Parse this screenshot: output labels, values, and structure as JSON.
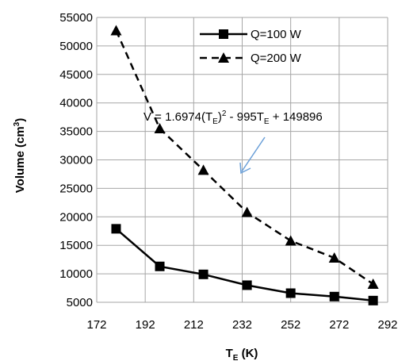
{
  "chart_data": {
    "type": "line",
    "xlabel": "T",
    "xlabel_sub": "E",
    "xlabel_unit": " (K)",
    "ylabel": "Volume (cm",
    "ylabel_sup": "3",
    "ylabel_close": ")",
    "xlim": [
      172,
      292
    ],
    "ylim": [
      5000,
      55000
    ],
    "x_ticks": [
      172,
      192,
      212,
      232,
      252,
      272,
      292
    ],
    "y_ticks": [
      5000,
      10000,
      15000,
      20000,
      25000,
      30000,
      35000,
      40000,
      45000,
      50000,
      55000
    ],
    "grid": true,
    "legend_position": "top-right",
    "series": [
      {
        "name": "Q=100 W",
        "marker": "square",
        "dash": "solid",
        "color": "#000000",
        "points": [
          [
            180,
            17900
          ],
          [
            198,
            11300
          ],
          [
            216,
            9900
          ],
          [
            234,
            8000
          ],
          [
            252,
            6600
          ],
          [
            270,
            6000
          ],
          [
            286,
            5300
          ]
        ]
      },
      {
        "name": "Q=200 W",
        "marker": "triangle",
        "dash": "dashed",
        "color": "#000000",
        "points": [
          [
            180,
            52700
          ],
          [
            198,
            35500
          ],
          [
            216,
            28200
          ],
          [
            234,
            20800
          ],
          [
            252,
            15800
          ],
          [
            270,
            12800
          ],
          [
            286,
            8200
          ]
        ]
      }
    ],
    "annotation": {
      "parts": [
        "V",
        " = 1.6974(T",
        "E",
        ")",
        "2",
        " - 995T",
        "E",
        " + 149896"
      ],
      "arrow_color": "#6a9fd8"
    }
  }
}
